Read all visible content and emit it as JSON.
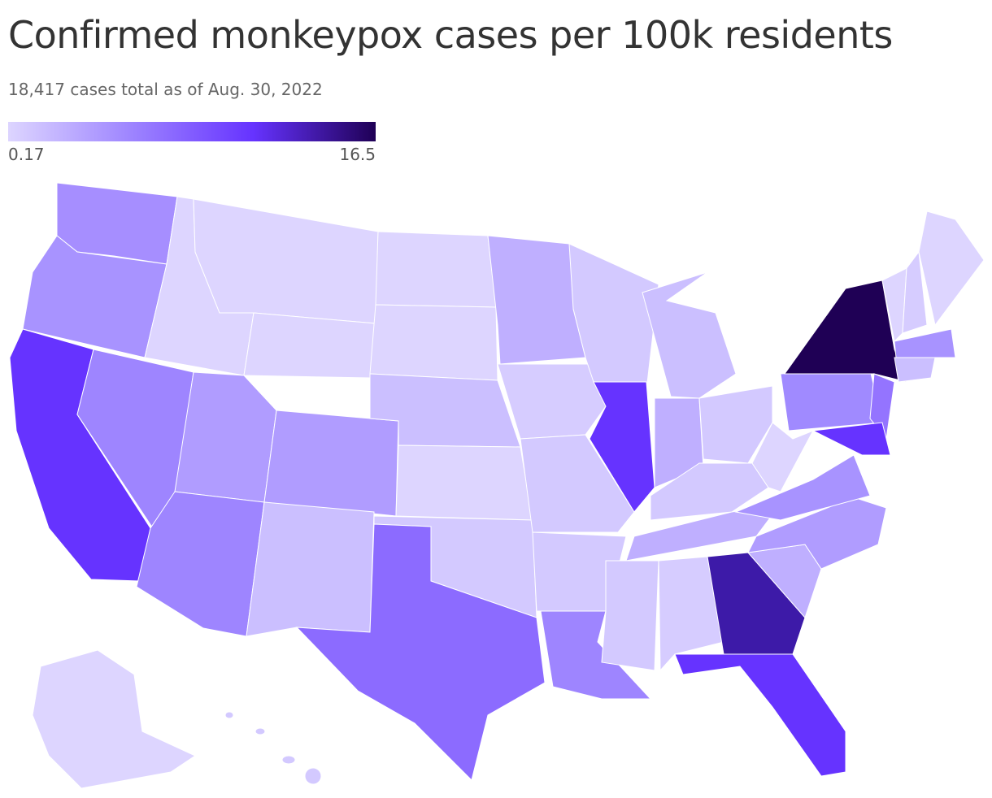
{
  "header": {
    "title": "Confirmed monkeypox cases per 100k residents",
    "subtitle": "18,417 cases total as of Aug. 30, 2022"
  },
  "legend": {
    "min": 0.17,
    "max": 16.5,
    "colors": [
      "#ddd5ff",
      "#9e85ff",
      "#6633ff",
      "#1f0055"
    ]
  }
}
